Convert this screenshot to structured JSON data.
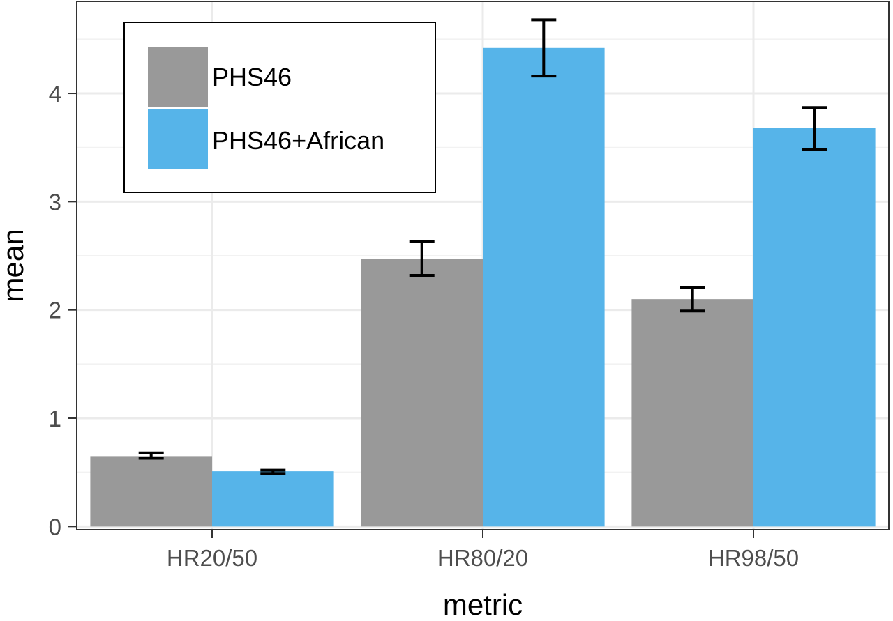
{
  "chart_data": {
    "type": "bar",
    "categories": [
      "HR20/50",
      "HR80/20",
      "HR98/50"
    ],
    "series": [
      {
        "name": "PHS46",
        "color": "#999999",
        "values": [
          0.65,
          2.47,
          2.1
        ],
        "err_low": [
          0.63,
          2.32,
          1.99
        ],
        "err_high": [
          0.68,
          2.63,
          2.21
        ]
      },
      {
        "name": "PHS46+African",
        "color": "#56b4e9",
        "values": [
          0.51,
          4.42,
          3.68
        ],
        "err_low": [
          0.49,
          4.16,
          3.48
        ],
        "err_high": [
          0.52,
          4.68,
          3.87
        ]
      }
    ],
    "xlabel": "metric",
    "ylabel": "mean",
    "ylim": [
      -0.03,
      4.85
    ],
    "yticks": [
      0,
      1,
      2,
      3,
      4
    ],
    "ytick_labels": [
      "0",
      "1",
      "2",
      "3",
      "4"
    ],
    "grid": true,
    "legend_position": "top-left"
  }
}
